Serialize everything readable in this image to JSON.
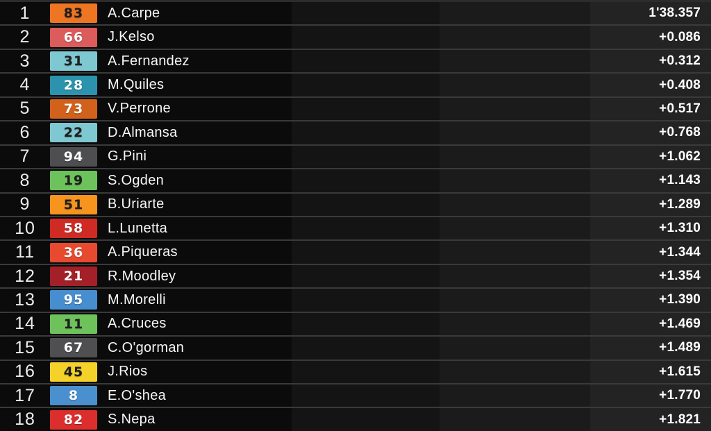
{
  "board": {
    "type": "race-timing-classification",
    "leader_time": "1'38.357",
    "colors": {
      "row_bg_main": "#0b0b0b",
      "row_bg_sector2": "#141414",
      "row_bg_sector3": "#1b1b1b",
      "row_bg_gap": "#232323",
      "separator": "#3a3a3a",
      "position_text": "#ececec",
      "rider_text": "#f7f7f7",
      "time_text": "#ffffff"
    },
    "rows": [
      {
        "position": "1",
        "number": "83",
        "number_bg": "#EE7522",
        "number_color": "#1e1e1e",
        "rider": "A.Carpe",
        "time": "1'38.357"
      },
      {
        "position": "2",
        "number": "66",
        "number_bg": "#DC5B5B",
        "number_color": "#ffffff",
        "rider": "J.Kelso",
        "time": "+0.086"
      },
      {
        "position": "3",
        "number": "31",
        "number_bg": "#7EC8D2",
        "number_color": "#1e1e1e",
        "rider": "A.Fernandez",
        "time": "+0.312"
      },
      {
        "position": "4",
        "number": "28",
        "number_bg": "#2B93AD",
        "number_color": "#ffffff",
        "rider": "M.Quiles",
        "time": "+0.408"
      },
      {
        "position": "5",
        "number": "73",
        "number_bg": "#D2611C",
        "number_color": "#ffffff",
        "rider": "V.Perrone",
        "time": "+0.517"
      },
      {
        "position": "6",
        "number": "22",
        "number_bg": "#7EC8D2",
        "number_color": "#1e1e1e",
        "rider": "D.Almansa",
        "time": "+0.768"
      },
      {
        "position": "7",
        "number": "94",
        "number_bg": "#4E4E50",
        "number_color": "#ffffff",
        "rider": "G.Pini",
        "time": "+1.062"
      },
      {
        "position": "8",
        "number": "19",
        "number_bg": "#6EC25B",
        "number_color": "#1e1e1e",
        "rider": "S.Ogden",
        "time": "+1.143"
      },
      {
        "position": "9",
        "number": "51",
        "number_bg": "#F6941E",
        "number_color": "#1e1e1e",
        "rider": "B.Uriarte",
        "time": "+1.289"
      },
      {
        "position": "10",
        "number": "58",
        "number_bg": "#CF2B24",
        "number_color": "#ffffff",
        "rider": "L.Lunetta",
        "time": "+1.310"
      },
      {
        "position": "11",
        "number": "36",
        "number_bg": "#E84A30",
        "number_color": "#ffffff",
        "rider": "A.Piqueras",
        "time": "+1.344"
      },
      {
        "position": "12",
        "number": "21",
        "number_bg": "#A42028",
        "number_color": "#ffffff",
        "rider": "R.Moodley",
        "time": "+1.354"
      },
      {
        "position": "13",
        "number": "95",
        "number_bg": "#468ECF",
        "number_color": "#ffffff",
        "rider": "M.Morelli",
        "time": "+1.390"
      },
      {
        "position": "14",
        "number": "11",
        "number_bg": "#6EC25B",
        "number_color": "#1e1e1e",
        "rider": "A.Cruces",
        "time": "+1.469"
      },
      {
        "position": "15",
        "number": "67",
        "number_bg": "#4F4F51",
        "number_color": "#ffffff",
        "rider": "C.O'gorman",
        "time": "+1.489"
      },
      {
        "position": "16",
        "number": "45",
        "number_bg": "#F4D229",
        "number_color": "#1e1e1e",
        "rider": "J.Rios",
        "time": "+1.615"
      },
      {
        "position": "17",
        "number": "8",
        "number_bg": "#4A90CE",
        "number_color": "#ffffff",
        "rider": "E.O'shea",
        "time": "+1.770"
      },
      {
        "position": "18",
        "number": "82",
        "number_bg": "#DD2E2E",
        "number_color": "#ffffff",
        "rider": "S.Nepa",
        "time": "+1.821"
      }
    ]
  }
}
